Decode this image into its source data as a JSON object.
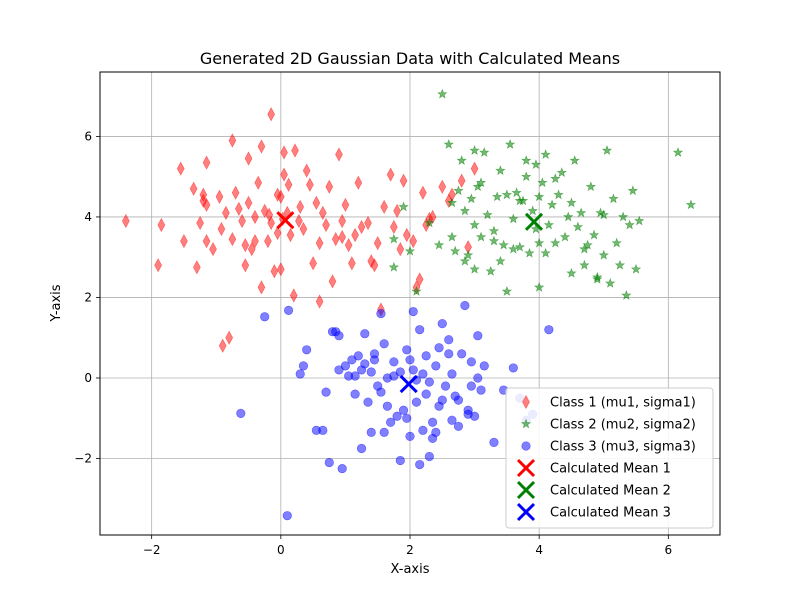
{
  "chart_data": {
    "type": "scatter",
    "title": "Generated 2D Gaussian Data with Calculated Means",
    "xlabel": "X-axis",
    "ylabel": "Y-axis",
    "xlim": [
      -2.8,
      6.8
    ],
    "ylim": [
      -3.9,
      7.6
    ],
    "xticks": [
      -2,
      0,
      2,
      4,
      6
    ],
    "yticks": [
      -2,
      0,
      2,
      4,
      6
    ],
    "grid": true,
    "legend_position": "lower-right",
    "series": [
      {
        "name": "Class 1 (mu1, sigma1)",
        "marker": "diamond",
        "color": "#ff0000",
        "alpha": 0.5,
        "points": [
          [
            -2.4,
            3.9
          ],
          [
            -1.9,
            2.8
          ],
          [
            -1.85,
            3.8
          ],
          [
            -1.55,
            5.2
          ],
          [
            -1.5,
            3.4
          ],
          [
            -1.35,
            4.7
          ],
          [
            -1.3,
            2.75
          ],
          [
            -1.25,
            3.85
          ],
          [
            -1.2,
            4.4
          ],
          [
            -1.2,
            4.55
          ],
          [
            -1.15,
            5.35
          ],
          [
            -1.15,
            4.3
          ],
          [
            -1.15,
            3.4
          ],
          [
            -1.05,
            3.2
          ],
          [
            -0.95,
            4.5
          ],
          [
            -0.92,
            3.7
          ],
          [
            -0.9,
            0.8
          ],
          [
            -0.85,
            4.1
          ],
          [
            -0.8,
            1.0
          ],
          [
            -0.75,
            3.45
          ],
          [
            -0.75,
            5.9
          ],
          [
            -0.7,
            4.6
          ],
          [
            -0.65,
            4.2
          ],
          [
            -0.6,
            3.9
          ],
          [
            -0.55,
            3.3
          ],
          [
            -0.55,
            2.8
          ],
          [
            -0.5,
            5.45
          ],
          [
            -0.5,
            4.35
          ],
          [
            -0.45,
            3.2
          ],
          [
            -0.4,
            4.0
          ],
          [
            -0.35,
            4.85
          ],
          [
            -0.3,
            2.25
          ],
          [
            -0.3,
            5.75
          ],
          [
            -0.25,
            4.15
          ],
          [
            -0.2,
            3.4
          ],
          [
            -0.18,
            4.05
          ],
          [
            -0.15,
            3.85
          ],
          [
            -0.1,
            2.65
          ],
          [
            -0.05,
            4.55
          ],
          [
            -0.05,
            3.6
          ],
          [
            0.0,
            4.5
          ],
          [
            0.0,
            2.7
          ],
          [
            0.03,
            3.95
          ],
          [
            0.05,
            5.05
          ],
          [
            0.1,
            4.1
          ],
          [
            0.12,
            4.8
          ],
          [
            0.15,
            3.55
          ],
          [
            0.2,
            2.05
          ],
          [
            0.22,
            5.65
          ],
          [
            0.28,
            3.9
          ],
          [
            0.3,
            4.25
          ],
          [
            0.35,
            3.7
          ],
          [
            0.4,
            5.15
          ],
          [
            0.45,
            4.8
          ],
          [
            0.5,
            2.85
          ],
          [
            0.55,
            4.35
          ],
          [
            0.6,
            1.9
          ],
          [
            0.6,
            3.35
          ],
          [
            0.65,
            4.1
          ],
          [
            0.7,
            3.8
          ],
          [
            0.75,
            4.75
          ],
          [
            0.8,
            2.4
          ],
          [
            0.85,
            3.45
          ],
          [
            0.9,
            5.55
          ],
          [
            0.95,
            3.9
          ],
          [
            1.0,
            4.3
          ],
          [
            1.05,
            3.3
          ],
          [
            1.1,
            2.85
          ],
          [
            1.15,
            3.55
          ],
          [
            1.2,
            4.85
          ],
          [
            1.25,
            3.75
          ],
          [
            1.35,
            3.85
          ],
          [
            1.4,
            2.9
          ],
          [
            1.45,
            2.8
          ],
          [
            1.5,
            3.35
          ],
          [
            1.55,
            1.7
          ],
          [
            1.6,
            4.25
          ],
          [
            1.7,
            5.05
          ],
          [
            1.75,
            3.75
          ],
          [
            1.8,
            4.15
          ],
          [
            1.85,
            3.2
          ],
          [
            1.9,
            4.9
          ],
          [
            1.95,
            3.55
          ],
          [
            2.05,
            3.4
          ],
          [
            2.1,
            2.25
          ],
          [
            2.15,
            2.45
          ],
          [
            2.2,
            4.6
          ],
          [
            2.25,
            3.8
          ],
          [
            2.3,
            3.95
          ],
          [
            2.35,
            4.0
          ],
          [
            2.5,
            4.75
          ],
          [
            2.6,
            4.4
          ],
          [
            2.65,
            4.55
          ],
          [
            2.8,
            4.9
          ],
          [
            2.9,
            3.25
          ],
          [
            3.0,
            5.2
          ],
          [
            -0.15,
            6.55
          ],
          [
            0.05,
            5.6
          ],
          [
            -0.4,
            3.4
          ],
          [
            0.95,
            3.5
          ]
        ]
      },
      {
        "name": "Class 2 (mu2, sigma2)",
        "marker": "star",
        "color": "#008000",
        "alpha": 0.55,
        "points": [
          [
            1.75,
            2.75
          ],
          [
            1.75,
            3.45
          ],
          [
            1.9,
            4.25
          ],
          [
            2.0,
            3.15
          ],
          [
            2.1,
            2.15
          ],
          [
            2.3,
            3.85
          ],
          [
            2.45,
            3.3
          ],
          [
            2.5,
            7.05
          ],
          [
            2.6,
            5.8
          ],
          [
            2.65,
            4.35
          ],
          [
            2.7,
            3.15
          ],
          [
            2.75,
            4.65
          ],
          [
            2.8,
            5.4
          ],
          [
            2.85,
            2.9
          ],
          [
            2.9,
            3.05
          ],
          [
            2.95,
            4.45
          ],
          [
            3.0,
            5.65
          ],
          [
            3.0,
            2.7
          ],
          [
            3.05,
            4.75
          ],
          [
            3.1,
            3.5
          ],
          [
            3.15,
            5.6
          ],
          [
            3.2,
            4.05
          ],
          [
            3.25,
            2.65
          ],
          [
            3.3,
            3.65
          ],
          [
            3.35,
            4.5
          ],
          [
            3.4,
            5.15
          ],
          [
            3.45,
            3.3
          ],
          [
            3.5,
            4.55
          ],
          [
            3.5,
            2.15
          ],
          [
            3.55,
            5.8
          ],
          [
            3.6,
            3.95
          ],
          [
            3.65,
            4.6
          ],
          [
            3.7,
            3.25
          ],
          [
            3.75,
            4.4
          ],
          [
            3.8,
            5.4
          ],
          [
            3.85,
            3.1
          ],
          [
            3.9,
            4.15
          ],
          [
            3.95,
            3.7
          ],
          [
            4.0,
            2.25
          ],
          [
            4.0,
            3.35
          ],
          [
            4.05,
            4.85
          ],
          [
            4.1,
            5.55
          ],
          [
            4.15,
            3.8
          ],
          [
            4.2,
            4.3
          ],
          [
            4.25,
            3.35
          ],
          [
            4.3,
            4.55
          ],
          [
            4.35,
            5.1
          ],
          [
            4.4,
            3.5
          ],
          [
            4.45,
            4.0
          ],
          [
            4.5,
            2.6
          ],
          [
            4.55,
            5.4
          ],
          [
            4.6,
            3.75
          ],
          [
            4.65,
            4.1
          ],
          [
            4.7,
            2.8
          ],
          [
            4.75,
            3.3
          ],
          [
            4.8,
            4.75
          ],
          [
            4.85,
            3.55
          ],
          [
            4.9,
            2.5
          ],
          [
            4.95,
            4.1
          ],
          [
            5.0,
            3.05
          ],
          [
            5.05,
            5.65
          ],
          [
            5.1,
            2.35
          ],
          [
            5.15,
            4.45
          ],
          [
            5.2,
            3.35
          ],
          [
            5.25,
            2.8
          ],
          [
            5.3,
            4.0
          ],
          [
            5.35,
            2.05
          ],
          [
            5.4,
            3.8
          ],
          [
            5.45,
            4.65
          ],
          [
            5.5,
            2.7
          ],
          [
            5.55,
            3.9
          ],
          [
            6.15,
            5.6
          ],
          [
            6.35,
            4.3
          ],
          [
            3.3,
            3.4
          ],
          [
            3.6,
            3.2
          ],
          [
            3.8,
            5.0
          ],
          [
            4.1,
            3.1
          ],
          [
            4.25,
            4.95
          ],
          [
            4.5,
            4.35
          ],
          [
            4.7,
            3.2
          ],
          [
            3.0,
            3.8
          ],
          [
            2.65,
            3.5
          ],
          [
            3.1,
            4.85
          ],
          [
            3.4,
            2.9
          ],
          [
            2.85,
            4.15
          ],
          [
            4.0,
            4.5
          ],
          [
            3.95,
            5.3
          ],
          [
            5.0,
            4.05
          ],
          [
            4.9,
            2.45
          ],
          [
            3.7,
            4.4
          ]
        ]
      },
      {
        "name": "Class 3 (mu3, sigma3)",
        "marker": "circle",
        "color": "#0000ff",
        "alpha": 0.5,
        "points": [
          [
            -0.62,
            -0.88
          ],
          [
            -0.25,
            1.52
          ],
          [
            0.1,
            -3.42
          ],
          [
            0.12,
            1.68
          ],
          [
            0.3,
            0.1
          ],
          [
            0.35,
            0.3
          ],
          [
            0.4,
            0.7
          ],
          [
            0.55,
            -1.3
          ],
          [
            0.65,
            -1.3
          ],
          [
            0.7,
            -0.35
          ],
          [
            0.75,
            -2.1
          ],
          [
            0.8,
            1.15
          ],
          [
            0.85,
            1.15
          ],
          [
            0.9,
            1.05
          ],
          [
            0.95,
            -2.25
          ],
          [
            1.0,
            0.3
          ],
          [
            1.05,
            0.05
          ],
          [
            1.1,
            0.45
          ],
          [
            1.15,
            -0.4
          ],
          [
            1.2,
            0.55
          ],
          [
            1.25,
            -1.75
          ],
          [
            1.3,
            1.1
          ],
          [
            1.35,
            -0.6
          ],
          [
            1.4,
            0.15
          ],
          [
            1.45,
            0.6
          ],
          [
            1.5,
            -0.2
          ],
          [
            1.55,
            1.6
          ],
          [
            1.6,
            -1.35
          ],
          [
            1.65,
            0.0
          ],
          [
            1.7,
            -1.1
          ],
          [
            1.75,
            0.4
          ],
          [
            1.8,
            -0.95
          ],
          [
            1.85,
            -2.05
          ],
          [
            1.9,
            -0.8
          ],
          [
            1.95,
            0.7
          ],
          [
            2.0,
            -1.45
          ],
          [
            2.05,
            0.2
          ],
          [
            2.1,
            -0.6
          ],
          [
            2.15,
            1.2
          ],
          [
            2.2,
            -1.3
          ],
          [
            2.25,
            0.55
          ],
          [
            2.3,
            -0.1
          ],
          [
            2.35,
            -1.5
          ],
          [
            2.4,
            0.3
          ],
          [
            2.45,
            -0.7
          ],
          [
            2.5,
            1.35
          ],
          [
            2.55,
            -0.2
          ],
          [
            2.6,
            0.95
          ],
          [
            2.65,
            -1.05
          ],
          [
            2.7,
            -0.45
          ],
          [
            2.75,
            -1.2
          ],
          [
            2.8,
            0.6
          ],
          [
            2.85,
            1.8
          ],
          [
            2.9,
            -0.9
          ],
          [
            2.95,
            0.4
          ],
          [
            3.0,
            -0.95
          ],
          [
            3.05,
            1.05
          ],
          [
            3.1,
            -0.3
          ],
          [
            3.15,
            0.3
          ],
          [
            3.3,
            -1.6
          ],
          [
            3.45,
            -0.3
          ],
          [
            3.6,
            0.25
          ],
          [
            3.7,
            -0.5
          ],
          [
            3.8,
            -1.05
          ],
          [
            3.9,
            -0.9
          ],
          [
            4.15,
            1.2
          ],
          [
            1.55,
            -0.35
          ],
          [
            1.4,
            -1.35
          ],
          [
            1.75,
            0.05
          ],
          [
            2.05,
            1.65
          ],
          [
            2.25,
            -0.4
          ],
          [
            2.15,
            -2.15
          ],
          [
            1.6,
            0.85
          ],
          [
            2.4,
            -1.35
          ],
          [
            1.95,
            -1.0
          ],
          [
            2.6,
            0.6
          ],
          [
            2.75,
            -0.55
          ],
          [
            1.3,
            0.35
          ],
          [
            2.0,
            0.45
          ],
          [
            2.95,
            -0.2
          ],
          [
            1.85,
            0.15
          ],
          [
            2.35,
            -1.1
          ],
          [
            1.15,
            0.05
          ],
          [
            2.65,
            0.1
          ],
          [
            3.05,
            0.0
          ],
          [
            2.3,
            -1.95
          ],
          [
            1.65,
            -0.7
          ],
          [
            2.5,
            -0.55
          ],
          [
            1.45,
            0.45
          ],
          [
            2.2,
            0.1
          ],
          [
            2.9,
            -0.8
          ],
          [
            0.9,
            0.2
          ],
          [
            2.1,
            -0.05
          ],
          [
            2.45,
            0.75
          ],
          [
            1.25,
            0.2
          ]
        ]
      }
    ],
    "means": [
      {
        "name": "Calculated Mean 1",
        "x": 0.07,
        "y": 3.92,
        "color": "#ff0000"
      },
      {
        "name": "Calculated Mean 2",
        "x": 3.92,
        "y": 3.88,
        "color": "#008000"
      },
      {
        "name": "Calculated Mean 3",
        "x": 1.98,
        "y": -0.15,
        "color": "#0000ff"
      }
    ]
  }
}
